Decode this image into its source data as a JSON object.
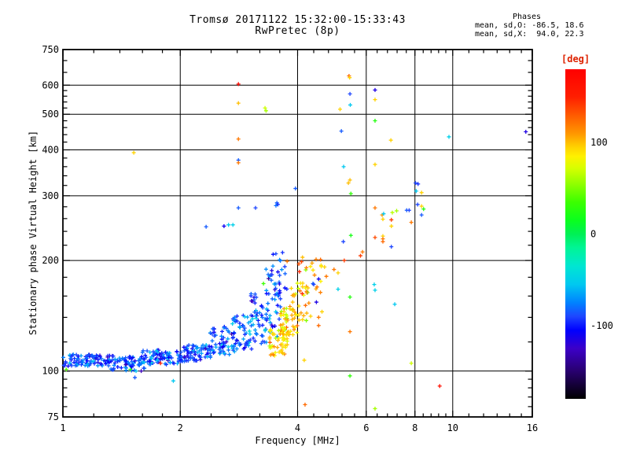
{
  "header": {
    "title": "Tromsø 20171122 15:32:00-15:33:43",
    "subtitle": "RwPretec (8p)"
  },
  "stats": {
    "title": "Phases",
    "o_line": "mean, sd,O: -86.5, 18.6",
    "x_line": "mean, sd,X:  94.0, 22.3"
  },
  "chart_data": {
    "type": "scatter",
    "title": "Tromsø 20171122 15:32:00-15:33:43",
    "subtitle": "RwPretec (8p)",
    "xlabel": "Frequency [MHz]",
    "ylabel": "Stationary phase Virtual Height [km]",
    "x_scale": "log",
    "y_scale": "log",
    "xlim": [
      1,
      16
    ],
    "ylim": [
      75,
      750
    ],
    "grid": "on",
    "x_major_ticks": [
      1,
      2,
      4,
      6,
      8,
      10,
      16
    ],
    "x_gridlines": [
      2,
      4,
      6,
      8,
      10
    ],
    "x_minor_ticks": [
      1.2,
      1.4,
      1.6,
      1.8,
      2.4,
      2.8,
      3.2,
      3.6,
      4.4,
      4.8,
      5.2,
      5.6,
      6.4,
      6.8,
      7.2,
      7.6,
      8.4,
      8.8,
      9.2,
      9.6,
      11,
      12,
      13,
      14,
      15
    ],
    "y_major_ticks": [
      75,
      100,
      200,
      300,
      400,
      500,
      600,
      750
    ],
    "y_gridlines": [
      100,
      200,
      300,
      400,
      500,
      600
    ],
    "y_minor_ticks": [
      80,
      85,
      90,
      95,
      120,
      140,
      160,
      180,
      220,
      240,
      260,
      280,
      320,
      340,
      360,
      380,
      420,
      440,
      460,
      480,
      520,
      540,
      560,
      580,
      650,
      700
    ],
    "phase_stats": {
      "o_mean": -86.5,
      "o_sd": 18.6,
      "x_mean": 94.0,
      "x_sd": 22.3
    },
    "colorbar": {
      "label": "[deg]",
      "label_color": "#dd2200",
      "ticks": [
        100,
        0,
        -100
      ],
      "range": [
        -180,
        180
      ],
      "stops": [
        [
          180,
          "#ff0000"
        ],
        [
          150,
          "#ff1e00"
        ],
        [
          130,
          "#ff5a00"
        ],
        [
          110,
          "#ff9600"
        ],
        [
          95,
          "#ffd200"
        ],
        [
          85,
          "#fff000"
        ],
        [
          72,
          "#d7ff00"
        ],
        [
          55,
          "#91ff00"
        ],
        [
          35,
          "#3cff00"
        ],
        [
          15,
          "#0aff1e"
        ],
        [
          0,
          "#00f055"
        ],
        [
          -15,
          "#00f596"
        ],
        [
          -35,
          "#00e6d2"
        ],
        [
          -55,
          "#00c8f0"
        ],
        [
          -75,
          "#0082ff"
        ],
        [
          -90,
          "#1e46ff"
        ],
        [
          -105,
          "#0000ff"
        ],
        [
          -125,
          "#3c00c8"
        ],
        [
          -150,
          "#28006e"
        ],
        [
          -180,
          "#000000"
        ]
      ]
    },
    "seed": 42,
    "point_units": [
      "MHz",
      "km",
      "deg"
    ],
    "clusters": [
      {
        "n": 85,
        "f": [
          1.0,
          1.32
        ],
        "h": [
          103,
          111
        ],
        "phase_mean": -87,
        "phase_sd": 16
      },
      {
        "n": 70,
        "f": [
          1.3,
          1.62
        ],
        "h": [
          100,
          110
        ],
        "phase_mean": -87,
        "phase_sd": 16
      },
      {
        "n": 80,
        "f": [
          1.6,
          2.02
        ],
        "h": [
          104,
          114
        ],
        "phase_mean": -87,
        "phase_sd": 16
      },
      {
        "n": 65,
        "f": [
          2.0,
          2.4
        ],
        "h": [
          106,
          118
        ],
        "phase_mean": -87,
        "phase_sd": 16
      },
      {
        "n": 55,
        "f": [
          2.38,
          2.76
        ],
        "h": [
          110,
          132
        ],
        "phase_mean": -85,
        "phase_sd": 17
      },
      {
        "n": 50,
        "f": [
          2.72,
          3.06
        ],
        "h": [
          114,
          142
        ],
        "phase_mean": -85,
        "phase_sd": 17
      },
      {
        "n": 48,
        "f": [
          3.0,
          3.36
        ],
        "h": [
          118,
          165
        ],
        "phase_mean": -86,
        "phase_sd": 18
      },
      {
        "n": 42,
        "f": [
          3.3,
          3.62
        ],
        "h": [
          122,
          195
        ],
        "phase_mean": -88,
        "phase_sd": 18
      },
      {
        "n": 16,
        "f": [
          3.45,
          3.76
        ],
        "h": [
          165,
          215
        ],
        "phase_mean": -90,
        "phase_sd": 16
      },
      {
        "n": 55,
        "f": [
          3.38,
          3.8
        ],
        "h": [
          110,
          130
        ],
        "phase_mean": 94,
        "phase_sd": 18
      },
      {
        "n": 42,
        "f": [
          3.6,
          4.0
        ],
        "h": [
          124,
          150
        ],
        "phase_mean": 94,
        "phase_sd": 20
      },
      {
        "n": 26,
        "f": [
          3.85,
          4.3
        ],
        "h": [
          134,
          175
        ],
        "phase_mean": 96,
        "phase_sd": 20
      },
      {
        "n": 24,
        "f": [
          4.0,
          4.6
        ],
        "h": [
          158,
          205
        ],
        "phase_mean": 100,
        "phase_sd": 22
      }
    ],
    "points": [
      [
        2.82,
        604,
        170
      ],
      [
        5.42,
        636,
        125
      ],
      [
        5.44,
        629,
        95
      ],
      [
        2.82,
        536,
        100
      ],
      [
        3.3,
        520,
        70
      ],
      [
        3.32,
        511,
        60
      ],
      [
        5.45,
        568,
        -90
      ],
      [
        5.46,
        530,
        -55
      ],
      [
        5.14,
        516,
        95
      ],
      [
        6.32,
        582,
        -115
      ],
      [
        6.32,
        548,
        95
      ],
      [
        6.32,
        480,
        25
      ],
      [
        5.18,
        450,
        -85
      ],
      [
        6.94,
        425,
        95
      ],
      [
        9.78,
        434,
        -50
      ],
      [
        15.4,
        448,
        -115
      ],
      [
        5.25,
        360,
        -55
      ],
      [
        6.32,
        365,
        95
      ],
      [
        5.45,
        331,
        100
      ],
      [
        2.82,
        428,
        120
      ],
      [
        1.52,
        393,
        95
      ],
      [
        2.82,
        375,
        -85
      ],
      [
        2.82,
        369,
        120
      ],
      [
        3.95,
        314,
        -85
      ],
      [
        5.4,
        325,
        100
      ],
      [
        5.48,
        304,
        30
      ],
      [
        3.54,
        287,
        -85
      ],
      [
        3.56,
        284,
        -95
      ],
      [
        3.52,
        282,
        -80
      ],
      [
        2.82,
        278,
        -85
      ],
      [
        3.12,
        278,
        -90
      ],
      [
        2.59,
        248,
        -110
      ],
      [
        2.66,
        250,
        -55
      ],
      [
        2.73,
        250,
        -50
      ],
      [
        2.33,
        247,
        -85
      ],
      [
        8.03,
        325,
        -90
      ],
      [
        8.15,
        323,
        -95
      ],
      [
        8.06,
        309,
        -55
      ],
      [
        8.32,
        306,
        95
      ],
      [
        8.13,
        284,
        -90
      ],
      [
        8.32,
        281,
        95
      ],
      [
        8.42,
        276,
        25
      ],
      [
        8.32,
        266,
        -85
      ],
      [
        7.62,
        274,
        -85
      ],
      [
        7.73,
        274,
        -90
      ],
      [
        6.32,
        278,
        120
      ],
      [
        7.18,
        273,
        60
      ],
      [
        6.59,
        266,
        110
      ],
      [
        6.65,
        268,
        -55
      ],
      [
        6.62,
        259,
        95
      ],
      [
        6.96,
        258,
        140
      ],
      [
        7.0,
        270,
        65
      ],
      [
        7.83,
        254,
        120
      ],
      [
        6.96,
        248,
        95
      ],
      [
        5.48,
        234,
        20
      ],
      [
        5.24,
        225,
        -90
      ],
      [
        6.32,
        231,
        135
      ],
      [
        6.62,
        233,
        95
      ],
      [
        6.62,
        229,
        120
      ],
      [
        6.62,
        225,
        125
      ],
      [
        6.96,
        218,
        -90
      ],
      [
        5.87,
        211,
        120
      ],
      [
        5.8,
        206,
        140
      ],
      [
        9.26,
        91,
        165
      ],
      [
        7.83,
        105,
        70
      ],
      [
        6.32,
        79,
        60
      ],
      [
        4.18,
        81,
        125
      ],
      [
        5.45,
        97,
        30
      ],
      [
        4.16,
        107,
        95
      ],
      [
        1.92,
        94,
        -55
      ],
      [
        1.53,
        96,
        -85
      ],
      [
        1.02,
        101,
        40
      ],
      [
        1.49,
        101,
        30
      ],
      [
        1.78,
        105,
        150
      ],
      [
        2.32,
        115,
        -125
      ],
      [
        1.45,
        104,
        -130
      ],
      [
        2.05,
        109,
        -125
      ],
      [
        3.76,
        199,
        120
      ],
      [
        5.27,
        200,
        140
      ],
      [
        4.58,
        201,
        125
      ],
      [
        4.69,
        192,
        95
      ],
      [
        4.96,
        189,
        120
      ],
      [
        5.08,
        185,
        95
      ],
      [
        4.74,
        181,
        120
      ],
      [
        5.45,
        159,
        25
      ],
      [
        5.08,
        167,
        -50
      ],
      [
        4.38,
        173,
        -85
      ],
      [
        4.4,
        172,
        -90
      ],
      [
        4.53,
        178,
        -110
      ],
      [
        4.47,
        154,
        -115
      ],
      [
        4.62,
        145,
        95
      ],
      [
        4.32,
        141,
        95
      ],
      [
        4.53,
        140,
        120
      ],
      [
        4.12,
        138,
        95
      ],
      [
        4.53,
        133,
        125
      ],
      [
        5.45,
        128,
        120
      ],
      [
        6.29,
        172,
        -50
      ],
      [
        6.32,
        166,
        -50
      ],
      [
        7.1,
        152,
        -55
      ],
      [
        3.27,
        173,
        35
      ]
    ]
  }
}
